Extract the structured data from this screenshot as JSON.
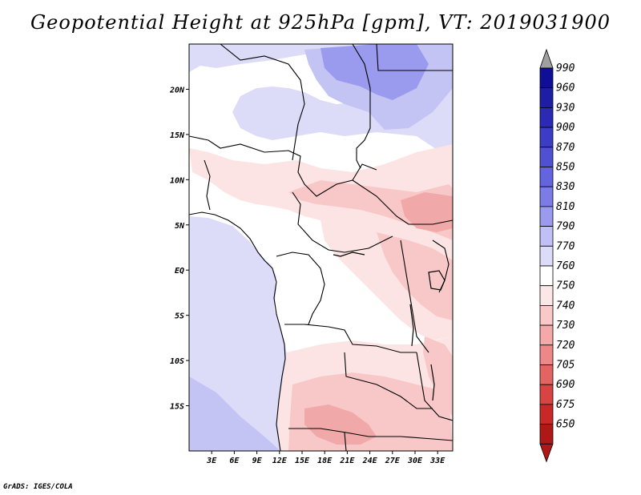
{
  "title": "Geopotential Height at 925hPa [gpm], VT: 2019031900",
  "footer": "GrADS: IGES/COLA",
  "map": {
    "region": "Central and Southern Africa",
    "lat_labels": [
      "20N",
      "15N",
      "10N",
      "5N",
      "EQ",
      "5S",
      "10S",
      "15S"
    ],
    "lat_values": [
      20,
      15,
      10,
      5,
      0,
      -5,
      -10,
      -15
    ],
    "lon_labels": [
      "3E",
      "6E",
      "9E",
      "12E",
      "15E",
      "18E",
      "21E",
      "24E",
      "27E",
      "30E",
      "33E"
    ],
    "lon_values": [
      3,
      6,
      9,
      12,
      15,
      18,
      21,
      24,
      27,
      30,
      33
    ],
    "lat_range": [
      -20,
      25
    ],
    "lon_range": [
      0,
      35
    ]
  },
  "colorbar": {
    "levels": [
      "990",
      "960",
      "930",
      "900",
      "870",
      "850",
      "830",
      "810",
      "790",
      "770",
      "760",
      "750",
      "740",
      "730",
      "720",
      "705",
      "690",
      "675",
      "650"
    ],
    "colors": {
      "top_arrow": "#a0a0a0",
      "box_top": "#0a0a8c",
      "bottom_arrow": "#b01818"
    },
    "box_colors": [
      "#0e0e96",
      "#1e1ea4",
      "#2a2ab4",
      "#3c3cc4",
      "#5050d2",
      "#6464de",
      "#7c7ce6",
      "#9a9aee",
      "#c0c0f6",
      "#dcdcfa",
      "#ffffff",
      "#fde6e6",
      "#f9c8c8",
      "#f4a8a8",
      "#ee8888",
      "#e46464",
      "#d84444",
      "#c82828",
      "#b01818"
    ]
  },
  "field_colors": {
    "ocean": "#dcdcf8",
    "dark_blue": "#9a9aee",
    "mid_blue": "#c4c4f4",
    "land_white": "#ffffff",
    "light_pink": "#fde4e4",
    "pink": "#f8c8c8",
    "deep_pink": "#f0a8a8"
  }
}
